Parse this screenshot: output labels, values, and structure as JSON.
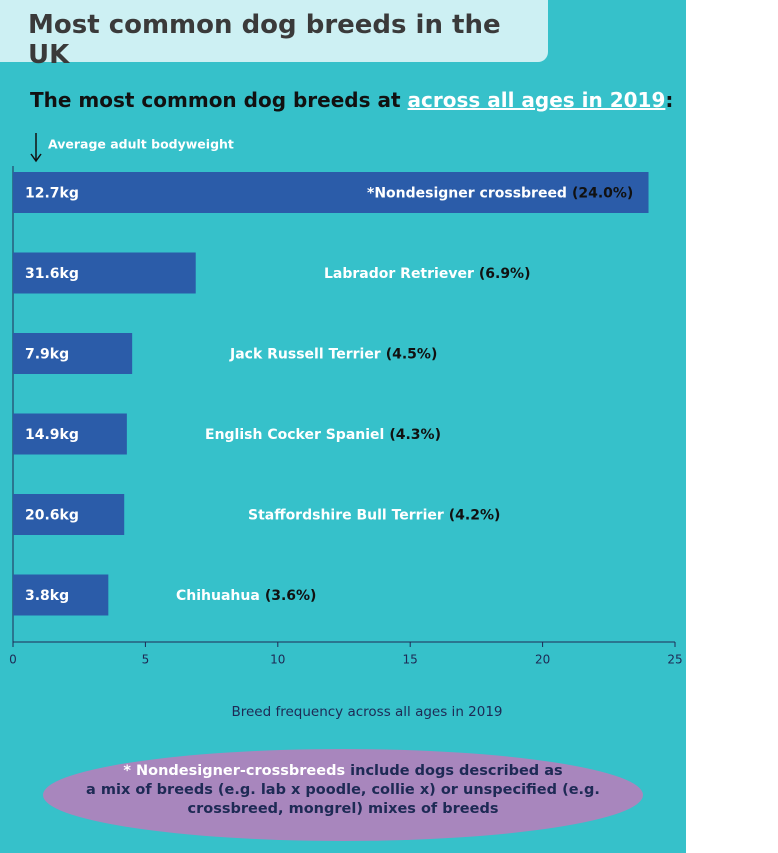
{
  "chart_data": {
    "type": "bar",
    "title": "Most common dog breeds in the UK",
    "subtitle_start": "The most common dog breeds at",
    "subtitle_highlight": "across all ages in 2019",
    "subtitle_end": ":",
    "weight_axis_label": "Average adult bodyweight",
    "x_label": "Breed frequency across all ages in 2019",
    "categories": [
      "*Nondesigner crossbreed",
      "Labrador Retriever",
      "Jack Russell Terrier",
      "English Cocker Spaniel",
      "Staffordshire Bull Terrier",
      "Chihuahua"
    ],
    "values": [
      24.0,
      6.9,
      4.5,
      4.3,
      4.2,
      3.6
    ],
    "value_labels": [
      "(24.0%)",
      "(6.9%)",
      "(4.5%)",
      "(4.3%)",
      "(4.2%)",
      "(3.6%)"
    ],
    "weights": [
      "12.7kg",
      "31.6kg",
      "7.9kg",
      "14.9kg",
      "20.6kg",
      "3.8kg"
    ],
    "color": "#2b5ca9",
    "xlim": [
      0,
      25
    ],
    "xticks": [
      0,
      5,
      10,
      15,
      20,
      25
    ],
    "orientation": "horizontal",
    "footnote": {
      "highlight": "* Nondesigner-crossbreeds",
      "lines": [
        "include dogs described as",
        "a mix of breeds (e.g. lab x poodle, collie x) or unspecified (e.g.",
        "crossbreed, mongrel) mixes of breeds"
      ]
    }
  }
}
